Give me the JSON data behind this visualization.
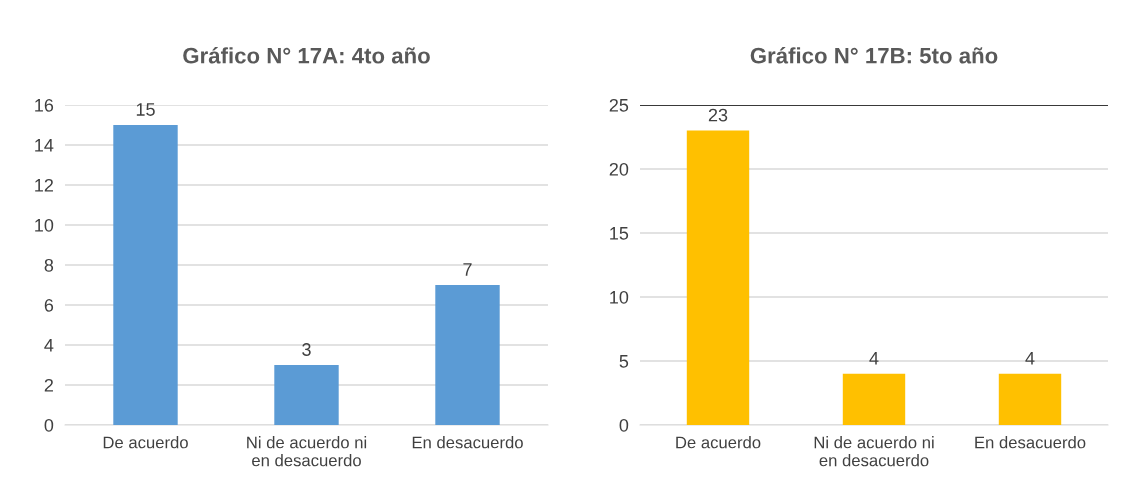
{
  "chart_data": [
    {
      "type": "bar",
      "title": "Gráfico N° 17A: 4to año",
      "categories": [
        "De acuerdo",
        "Ni de acuerdo ni\nen desacuerdo",
        "En desacuerdo"
      ],
      "values": [
        15,
        3,
        7
      ],
      "color": "#5b9bd5",
      "ylim": [
        0,
        16
      ],
      "yticks": [
        0,
        2,
        4,
        6,
        8,
        10,
        12,
        14,
        16
      ],
      "grid": "y",
      "data_labels": true
    },
    {
      "type": "bar",
      "title": "Gráfico N° 17B: 5to año",
      "categories": [
        "De acuerdo",
        "Ni de acuerdo ni\nen desacuerdo",
        "En desacuerdo"
      ],
      "values": [
        23,
        4,
        4
      ],
      "color": "#ffc000",
      "ylim": [
        0,
        25
      ],
      "yticks": [
        0,
        5,
        10,
        15,
        20,
        25
      ],
      "grid": "y",
      "data_labels": true,
      "ref_lines": [
        {
          "axis": "y",
          "value": 25,
          "color": "#000000",
          "line_style": "solid"
        }
      ]
    }
  ]
}
